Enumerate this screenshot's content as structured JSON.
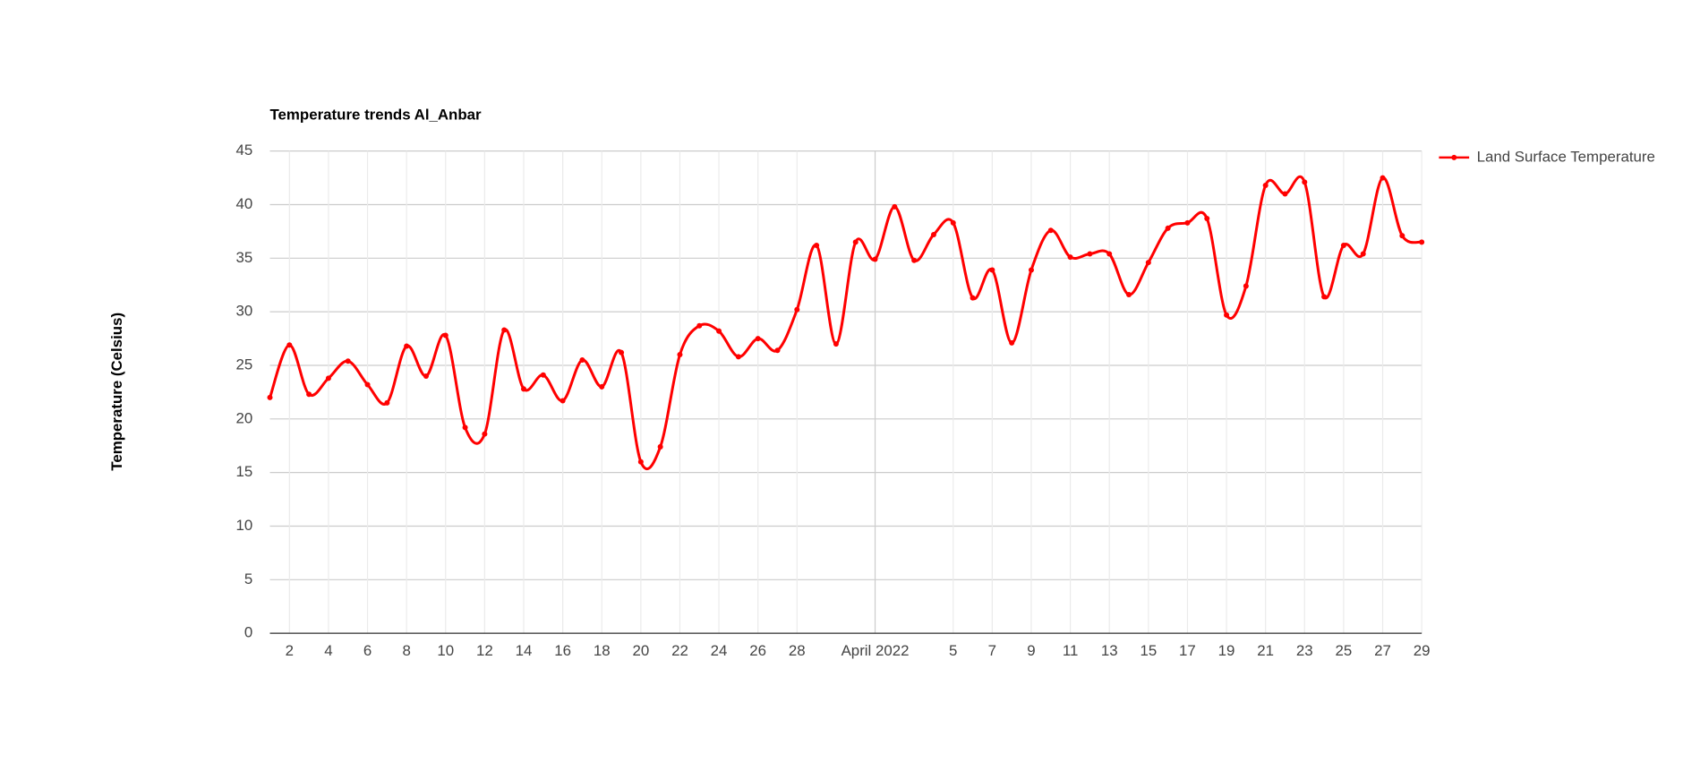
{
  "chart_data": {
    "type": "line",
    "title": "Temperature trends Al_Anbar",
    "y_label": "Temperature (Celsius)",
    "legend_position": "right",
    "grid": true,
    "curve": "smooth",
    "x": [
      "2022-03-01",
      "2022-03-02",
      "2022-03-03",
      "2022-03-04",
      "2022-03-05",
      "2022-03-06",
      "2022-03-07",
      "2022-03-08",
      "2022-03-09",
      "2022-03-10",
      "2022-03-11",
      "2022-03-12",
      "2022-03-13",
      "2022-03-14",
      "2022-03-15",
      "2022-03-16",
      "2022-03-17",
      "2022-03-18",
      "2022-03-19",
      "2022-03-20",
      "2022-03-21",
      "2022-03-22",
      "2022-03-23",
      "2022-03-24",
      "2022-03-25",
      "2022-03-26",
      "2022-03-27",
      "2022-03-28",
      "2022-03-29",
      "2022-03-30",
      "2022-03-31",
      "2022-04-01",
      "2022-04-02",
      "2022-04-03",
      "2022-04-04",
      "2022-04-05",
      "2022-04-06",
      "2022-04-07",
      "2022-04-08",
      "2022-04-09",
      "2022-04-10",
      "2022-04-11",
      "2022-04-12",
      "2022-04-13",
      "2022-04-14",
      "2022-04-15",
      "2022-04-16",
      "2022-04-17",
      "2022-04-18",
      "2022-04-19",
      "2022-04-20",
      "2022-04-21",
      "2022-04-22",
      "2022-04-23",
      "2022-04-24",
      "2022-04-25",
      "2022-04-26",
      "2022-04-27",
      "2022-04-28",
      "2022-04-29"
    ],
    "series": [
      {
        "name": "Land Surface Temperature",
        "color": "#ff0000",
        "values": [
          22,
          26.9,
          22.3,
          23.8,
          25.4,
          23.2,
          21.5,
          26.8,
          24,
          27.8,
          19.2,
          18.6,
          28.3,
          22.8,
          24.1,
          21.7,
          25.5,
          23,
          26.2,
          16,
          17.4,
          26,
          28.7,
          28.2,
          25.8,
          27.5,
          26.4,
          30.2,
          36.2,
          27,
          36.5,
          34.9,
          39.8,
          34.8,
          37.2,
          38.3,
          31.3,
          33.9,
          27.1,
          33.9,
          37.6,
          35.1,
          35.4,
          35.4,
          31.6,
          34.6,
          37.8,
          38.3,
          38.7,
          29.7,
          32.4,
          41.8,
          41,
          42.1,
          31.4,
          36.2,
          35.4,
          42.5,
          37.1,
          36.5
        ]
      }
    ],
    "xlim": [
      "2022-03-01",
      "2022-04-29"
    ],
    "xticks": [
      {
        "value": "2022-03-02",
        "label": "2"
      },
      {
        "value": "2022-03-04",
        "label": "4"
      },
      {
        "value": "2022-03-06",
        "label": "6"
      },
      {
        "value": "2022-03-08",
        "label": "8"
      },
      {
        "value": "2022-03-10",
        "label": "10"
      },
      {
        "value": "2022-03-12",
        "label": "12"
      },
      {
        "value": "2022-03-14",
        "label": "14"
      },
      {
        "value": "2022-03-16",
        "label": "16"
      },
      {
        "value": "2022-03-18",
        "label": "18"
      },
      {
        "value": "2022-03-20",
        "label": "20"
      },
      {
        "value": "2022-03-22",
        "label": "22"
      },
      {
        "value": "2022-03-24",
        "label": "24"
      },
      {
        "value": "2022-03-26",
        "label": "26"
      },
      {
        "value": "2022-03-28",
        "label": "28"
      },
      {
        "value": "2022-04-01",
        "label": "April 2022"
      },
      {
        "value": "2022-04-05",
        "label": "5"
      },
      {
        "value": "2022-04-07",
        "label": "7"
      },
      {
        "value": "2022-04-09",
        "label": "9"
      },
      {
        "value": "2022-04-11",
        "label": "11"
      },
      {
        "value": "2022-04-13",
        "label": "13"
      },
      {
        "value": "2022-04-15",
        "label": "15"
      },
      {
        "value": "2022-04-17",
        "label": "17"
      },
      {
        "value": "2022-04-19",
        "label": "19"
      },
      {
        "value": "2022-04-21",
        "label": "21"
      },
      {
        "value": "2022-04-23",
        "label": "23"
      },
      {
        "value": "2022-04-25",
        "label": "25"
      },
      {
        "value": "2022-04-27",
        "label": "27"
      },
      {
        "value": "2022-04-29",
        "label": "29"
      }
    ],
    "ylim": [
      0,
      45
    ],
    "yticks": [
      0,
      5,
      10,
      15,
      20,
      25,
      30,
      35,
      40,
      45
    ]
  }
}
